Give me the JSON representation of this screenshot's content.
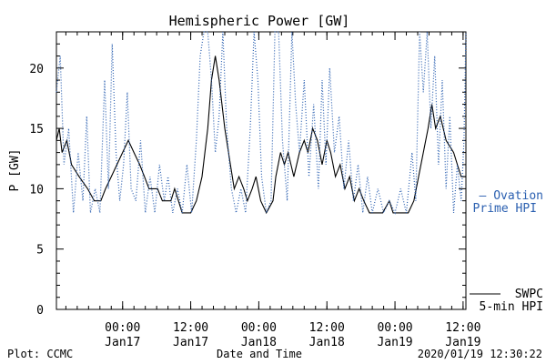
{
  "colors": {
    "swpc": "#000000",
    "ovation": "#2a5fb0",
    "axis": "#000000",
    "background": "#ffffff"
  },
  "chart_data": {
    "type": "line",
    "title": "Hemispheric Power [GW]",
    "ylabel": "P [GW]",
    "xlabel": "Date and Time",
    "ylim": [
      0,
      23
    ],
    "xlim": [
      "2020-01-16 12:20",
      "2020-01-19 12:30"
    ],
    "yticks": [
      "0",
      "5",
      "10",
      "15",
      "20"
    ],
    "xticks": [
      {
        "time": "00:00",
        "date": "Jan17",
        "at": "2020-01-17 00:00"
      },
      {
        "time": "12:00",
        "date": "Jan17",
        "at": "2020-01-17 12:00"
      },
      {
        "time": "00:00",
        "date": "Jan18",
        "at": "2020-01-18 00:00"
      },
      {
        "time": "12:00",
        "date": "Jan18",
        "at": "2020-01-18 12:00"
      },
      {
        "time": "00:00",
        "date": "Jan19",
        "at": "2020-01-19 00:00"
      },
      {
        "time": "12:00",
        "date": "Jan19",
        "at": "2020-01-19 12:00"
      }
    ],
    "grid": false,
    "legend": {
      "placement": "right"
    },
    "series": [
      {
        "name": "SWPC 5-min HPI",
        "legend_lines": [
          "SWPC",
          "5-min HPI"
        ],
        "style": "solid",
        "color": "#000000",
        "points": [
          [
            "2020-01-16 12:20",
            14
          ],
          [
            "2020-01-16 12:50",
            15
          ],
          [
            "2020-01-16 13:20",
            13
          ],
          [
            "2020-01-16 14:10",
            14
          ],
          [
            "2020-01-16 15:00",
            12
          ],
          [
            "2020-01-16 16:20",
            11
          ],
          [
            "2020-01-16 17:50",
            10
          ],
          [
            "2020-01-16 19:00",
            9
          ],
          [
            "2020-01-16 20:10",
            9
          ],
          [
            "2020-01-16 21:00",
            10
          ],
          [
            "2020-01-16 22:00",
            11
          ],
          [
            "2020-01-16 23:00",
            12
          ],
          [
            "2020-01-17 00:00",
            13
          ],
          [
            "2020-01-17 01:00",
            14
          ],
          [
            "2020-01-17 02:00",
            13
          ],
          [
            "2020-01-17 03:00",
            12
          ],
          [
            "2020-01-17 03:50",
            11
          ],
          [
            "2020-01-17 04:40",
            10
          ],
          [
            "2020-01-17 06:10",
            10
          ],
          [
            "2020-01-17 07:00",
            9
          ],
          [
            "2020-01-17 08:30",
            9
          ],
          [
            "2020-01-17 09:10",
            10
          ],
          [
            "2020-01-17 09:50",
            9
          ],
          [
            "2020-01-17 10:30",
            8
          ],
          [
            "2020-01-17 12:00",
            8
          ],
          [
            "2020-01-17 13:00",
            9
          ],
          [
            "2020-01-17 14:00",
            11
          ],
          [
            "2020-01-17 15:00",
            15
          ],
          [
            "2020-01-17 15:40",
            19
          ],
          [
            "2020-01-17 16:20",
            21
          ],
          [
            "2020-01-17 17:00",
            19
          ],
          [
            "2020-01-17 18:00",
            15
          ],
          [
            "2020-01-17 19:00",
            12
          ],
          [
            "2020-01-17 19:40",
            10
          ],
          [
            "2020-01-17 20:30",
            11
          ],
          [
            "2020-01-17 21:20",
            10
          ],
          [
            "2020-01-17 22:00",
            9
          ],
          [
            "2020-01-17 22:50",
            10
          ],
          [
            "2020-01-17 23:30",
            11
          ],
          [
            "2020-01-18 00:20",
            9
          ],
          [
            "2020-01-18 01:20",
            8
          ],
          [
            "2020-01-18 02:30",
            9
          ],
          [
            "2020-01-18 03:00",
            11
          ],
          [
            "2020-01-18 03:50",
            13
          ],
          [
            "2020-01-18 04:30",
            12
          ],
          [
            "2020-01-18 05:10",
            13
          ],
          [
            "2020-01-18 06:10",
            11
          ],
          [
            "2020-01-18 07:10",
            13
          ],
          [
            "2020-01-18 08:00",
            14
          ],
          [
            "2020-01-18 08:40",
            13
          ],
          [
            "2020-01-18 09:30",
            15
          ],
          [
            "2020-01-18 10:20",
            14
          ],
          [
            "2020-01-18 11:10",
            12
          ],
          [
            "2020-01-18 12:00",
            14
          ],
          [
            "2020-01-18 12:40",
            13
          ],
          [
            "2020-01-18 13:30",
            11
          ],
          [
            "2020-01-18 14:20",
            12
          ],
          [
            "2020-01-18 15:10",
            10
          ],
          [
            "2020-01-18 16:00",
            11
          ],
          [
            "2020-01-18 16:50",
            9
          ],
          [
            "2020-01-18 17:40",
            10
          ],
          [
            "2020-01-18 18:30",
            9
          ],
          [
            "2020-01-18 19:30",
            8
          ],
          [
            "2020-01-18 21:50",
            8
          ],
          [
            "2020-01-18 23:00",
            9
          ],
          [
            "2020-01-18 23:40",
            8
          ],
          [
            "2020-01-19 01:10",
            8
          ],
          [
            "2020-01-19 02:20",
            8
          ],
          [
            "2020-01-19 03:20",
            9
          ],
          [
            "2020-01-19 04:10",
            11
          ],
          [
            "2020-01-19 05:00",
            13
          ],
          [
            "2020-01-19 05:50",
            15
          ],
          [
            "2020-01-19 06:30",
            17
          ],
          [
            "2020-01-19 07:10",
            15
          ],
          [
            "2020-01-19 08:00",
            16
          ],
          [
            "2020-01-19 09:00",
            14
          ],
          [
            "2020-01-19 10:20",
            13
          ],
          [
            "2020-01-19 11:00",
            12
          ],
          [
            "2020-01-19 11:40",
            11
          ],
          [
            "2020-01-19 12:30",
            11
          ]
        ]
      },
      {
        "name": "Ovation Prime HPI",
        "legend_lines": [
          "— Ovation",
          "Prime HPI"
        ],
        "style": "dotted",
        "color": "#2a5fb0",
        "points": [
          [
            "2020-01-16 12:20",
            18
          ],
          [
            "2020-01-16 13:00",
            21
          ],
          [
            "2020-01-16 13:40",
            12
          ],
          [
            "2020-01-16 14:30",
            15
          ],
          [
            "2020-01-16 15:20",
            8
          ],
          [
            "2020-01-16 16:10",
            13
          ],
          [
            "2020-01-16 17:00",
            9
          ],
          [
            "2020-01-16 17:40",
            16
          ],
          [
            "2020-01-16 18:20",
            8
          ],
          [
            "2020-01-16 19:10",
            10
          ],
          [
            "2020-01-16 20:00",
            8
          ],
          [
            "2020-01-16 20:50",
            19
          ],
          [
            "2020-01-16 21:30",
            10
          ],
          [
            "2020-01-16 22:10",
            22
          ],
          [
            "2020-01-16 22:50",
            13
          ],
          [
            "2020-01-16 23:30",
            9
          ],
          [
            "2020-01-17 00:10",
            12
          ],
          [
            "2020-01-17 00:50",
            18
          ],
          [
            "2020-01-17 01:30",
            10
          ],
          [
            "2020-01-17 02:20",
            9
          ],
          [
            "2020-01-17 03:10",
            14
          ],
          [
            "2020-01-17 04:00",
            8
          ],
          [
            "2020-01-17 04:50",
            11
          ],
          [
            "2020-01-17 05:40",
            8
          ],
          [
            "2020-01-17 06:30",
            12
          ],
          [
            "2020-01-17 07:20",
            9
          ],
          [
            "2020-01-17 08:00",
            11
          ],
          [
            "2020-01-17 08:50",
            8
          ],
          [
            "2020-01-17 09:40",
            10
          ],
          [
            "2020-01-17 10:30",
            8
          ],
          [
            "2020-01-17 11:20",
            12
          ],
          [
            "2020-01-17 12:10",
            8
          ],
          [
            "2020-01-17 13:00",
            14
          ],
          [
            "2020-01-17 13:40",
            21
          ],
          [
            "2020-01-17 14:20",
            23
          ],
          [
            "2020-01-17 15:00",
            23
          ],
          [
            "2020-01-17 15:40",
            19
          ],
          [
            "2020-01-17 16:20",
            13
          ],
          [
            "2020-01-17 17:00",
            16
          ],
          [
            "2020-01-17 17:40",
            23
          ],
          [
            "2020-01-17 18:20",
            15
          ],
          [
            "2020-01-17 19:10",
            10
          ],
          [
            "2020-01-17 20:00",
            8
          ],
          [
            "2020-01-17 20:50",
            10
          ],
          [
            "2020-01-17 21:40",
            8
          ],
          [
            "2020-01-17 22:30",
            15
          ],
          [
            "2020-01-17 23:10",
            23
          ],
          [
            "2020-01-17 23:50",
            19
          ],
          [
            "2020-01-18 00:30",
            11
          ],
          [
            "2020-01-18 01:20",
            8
          ],
          [
            "2020-01-18 02:10",
            9
          ],
          [
            "2020-01-18 02:50",
            23
          ],
          [
            "2020-01-18 03:30",
            23
          ],
          [
            "2020-01-18 04:10",
            14
          ],
          [
            "2020-01-18 05:00",
            9
          ],
          [
            "2020-01-18 05:50",
            23
          ],
          [
            "2020-01-18 06:30",
            17
          ],
          [
            "2020-01-18 07:10",
            13
          ],
          [
            "2020-01-18 08:00",
            19
          ],
          [
            "2020-01-18 08:50",
            11
          ],
          [
            "2020-01-18 09:40",
            17
          ],
          [
            "2020-01-18 10:30",
            10
          ],
          [
            "2020-01-18 11:10",
            19
          ],
          [
            "2020-01-18 11:50",
            12
          ],
          [
            "2020-01-18 12:30",
            20
          ],
          [
            "2020-01-18 13:20",
            13
          ],
          [
            "2020-01-18 14:10",
            16
          ],
          [
            "2020-01-18 15:00",
            10
          ],
          [
            "2020-01-18 15:50",
            14
          ],
          [
            "2020-01-18 16:40",
            9
          ],
          [
            "2020-01-18 17:30",
            12
          ],
          [
            "2020-01-18 18:20",
            8
          ],
          [
            "2020-01-18 19:10",
            11
          ],
          [
            "2020-01-18 20:00",
            8
          ],
          [
            "2020-01-18 21:00",
            10
          ],
          [
            "2020-01-18 22:00",
            8
          ],
          [
            "2020-01-18 23:00",
            9
          ],
          [
            "2020-01-19 00:00",
            8
          ],
          [
            "2020-01-19 01:00",
            10
          ],
          [
            "2020-01-19 02:00",
            8
          ],
          [
            "2020-01-19 03:00",
            13
          ],
          [
            "2020-01-19 03:40",
            9
          ],
          [
            "2020-01-19 04:20",
            23
          ],
          [
            "2020-01-19 05:00",
            18
          ],
          [
            "2020-01-19 05:40",
            23
          ],
          [
            "2020-01-19 06:20",
            15
          ],
          [
            "2020-01-19 07:00",
            21
          ],
          [
            "2020-01-19 07:40",
            12
          ],
          [
            "2020-01-19 08:20",
            19
          ],
          [
            "2020-01-19 09:00",
            10
          ],
          [
            "2020-01-19 09:40",
            16
          ],
          [
            "2020-01-19 10:20",
            8
          ],
          [
            "2020-01-19 11:00",
            12
          ],
          [
            "2020-01-19 11:40",
            9
          ],
          [
            "2020-01-19 12:10",
            14
          ],
          [
            "2020-01-19 12:30",
            23
          ]
        ]
      }
    ]
  },
  "footer": {
    "plot_credit": "Plot: CCMC",
    "timestamp": "2020/01/19 12:30:22"
  }
}
